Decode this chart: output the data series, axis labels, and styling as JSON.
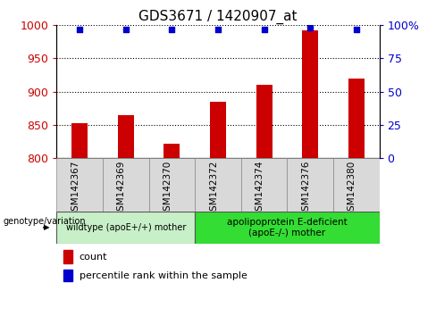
{
  "title": "GDS3671 / 1420907_at",
  "samples": [
    "GSM142367",
    "GSM142369",
    "GSM142370",
    "GSM142372",
    "GSM142374",
    "GSM142376",
    "GSM142380"
  ],
  "bar_values": [
    852,
    865,
    822,
    885,
    910,
    993,
    920
  ],
  "percentile_values": [
    97,
    97,
    97,
    97,
    97,
    98,
    97
  ],
  "bar_color": "#cc0000",
  "dot_color": "#0000cc",
  "ylim_left": [
    800,
    1000
  ],
  "ylim_right": [
    0,
    100
  ],
  "yticks_left": [
    800,
    850,
    900,
    950,
    1000
  ],
  "yticks_right": [
    0,
    25,
    50,
    75,
    100
  ],
  "n_group1": 3,
  "n_group2": 4,
  "group1_label": "wildtype (apoE+/+) mother",
  "group2_label": "apolipoprotein E-deficient\n(apoE-/-) mother",
  "group_header": "genotype/variation",
  "group1_color": "#c8f0c8",
  "group2_color": "#33dd33",
  "xtick_bg_color": "#d9d9d9",
  "legend_bar_label": "count",
  "legend_dot_label": "percentile rank within the sample",
  "left_tick_color": "#cc0000",
  "right_tick_color": "#0000cc",
  "bar_width": 0.35,
  "title_fontsize": 11,
  "tick_fontsize": 9,
  "label_fontsize": 8,
  "small_fontsize": 7.5
}
